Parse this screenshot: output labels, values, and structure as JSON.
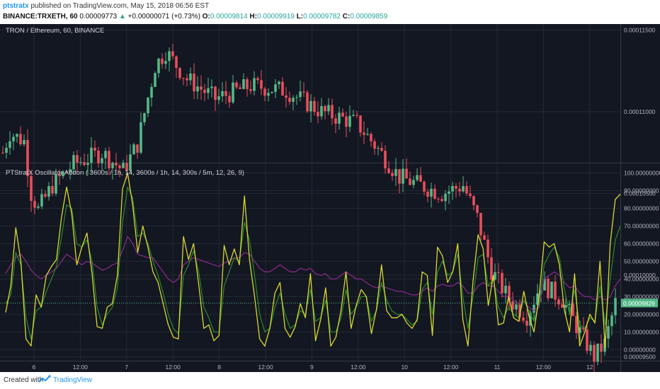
{
  "header": {
    "author": "ptstratx",
    "published_text": "published on TradingView.com, May 15, 2018 06:56 EST",
    "symbol": "BINANCE:TRXETH, 60",
    "last": "0.00009773",
    "change": "+0.00000071 (+0.73%)",
    "o_label": "O:",
    "o": "0.00009814",
    "h_label": "H:",
    "h": "0.00009919",
    "l_label": "L:",
    "l": "0.00009782",
    "c_label": "C:",
    "c": "0.00009859"
  },
  "price_pane": {
    "title": "TRON / Ethereum, 60, BINANCE",
    "axis_labels": [
      "0.00011500",
      "0.00011000",
      "0.00010500",
      "0.00010000",
      "0.00009500"
    ],
    "axis_values": [
      0.000115,
      0.00011,
      0.000105,
      0.0001,
      9.5e-05
    ],
    "last_price_label": "0.00009829",
    "last_price": 9.829e-05,
    "up_color": "#53b987",
    "down_color": "#eb4d5c",
    "close_path": [
      {
        "t": 0,
        "p": 0.0001075
      },
      {
        "t": 2,
        "p": 0.0001087
      },
      {
        "t": 6,
        "p": 0.0001082
      },
      {
        "t": 8,
        "p": 0.000105
      },
      {
        "t": 10,
        "p": 0.000104
      },
      {
        "t": 14,
        "p": 0.0001055
      },
      {
        "t": 20,
        "p": 0.0001068
      },
      {
        "t": 28,
        "p": 0.0001075
      },
      {
        "t": 34,
        "p": 0.0001064
      },
      {
        "t": 38,
        "p": 0.000108
      },
      {
        "t": 43,
        "p": 0.0001128
      },
      {
        "t": 46,
        "p": 0.0001137
      },
      {
        "t": 52,
        "p": 0.000112
      },
      {
        "t": 60,
        "p": 0.0001108
      },
      {
        "t": 70,
        "p": 0.0001116
      },
      {
        "t": 80,
        "p": 0.0001113
      },
      {
        "t": 90,
        "p": 0.00011
      },
      {
        "t": 100,
        "p": 0.0001093
      },
      {
        "t": 106,
        "p": 0.0001077
      },
      {
        "t": 112,
        "p": 0.000106
      },
      {
        "t": 118,
        "p": 0.0001055
      },
      {
        "t": 124,
        "p": 0.000105
      },
      {
        "t": 130,
        "p": 0.0001055
      },
      {
        "t": 134,
        "p": 0.0001035
      },
      {
        "t": 138,
        "p": 0.0001003
      },
      {
        "t": 143,
        "p": 9.85e-05
      },
      {
        "t": 148,
        "p": 9.75e-05
      },
      {
        "t": 152,
        "p": 9.95e-05
      },
      {
        "t": 158,
        "p": 9.85e-05
      },
      {
        "t": 163,
        "p": 9.65e-05
      },
      {
        "t": 167,
        "p": 9.5e-05
      },
      {
        "t": 170,
        "p": 9.58e-05
      },
      {
        "t": 173,
        "p": 9.83e-05
      }
    ]
  },
  "osc_pane": {
    "title": "PTStratX Oscillator Addon ( 3600s / 1h, 14,  3600s / 1h, 14,   300s / 5m, 12, 26, 9)",
    "axis_labels": [
      "100.00000000",
      "90.00000000",
      "80.00000000",
      "70.00000000",
      "60.00000000",
      "50.00000000",
      "40.00000000",
      "30.00000000",
      "20.00000000",
      "10.00000000",
      "0.00000000"
    ],
    "axis_values": [
      100,
      90,
      80,
      70,
      60,
      50,
      40,
      30,
      20,
      10,
      0
    ],
    "yellow_color": "#d8d830",
    "green_color": "#2c8a2c",
    "purple_color": "#8b2a8b",
    "yellow": [
      21,
      36,
      69,
      50,
      6,
      2,
      31,
      24,
      42,
      47,
      51,
      75,
      92,
      77,
      48,
      58,
      66,
      43,
      13,
      12,
      24,
      26,
      42,
      91,
      100,
      82,
      55,
      70,
      58,
      44,
      38,
      26,
      14,
      7,
      6,
      64,
      51,
      60,
      37,
      12,
      14,
      5,
      8,
      59,
      48,
      57,
      48,
      87,
      51,
      30,
      6,
      2,
      12,
      32,
      38,
      12,
      7,
      13,
      26,
      18,
      43,
      5,
      17,
      35,
      2,
      7,
      22,
      44,
      12,
      25,
      34,
      30,
      9,
      23,
      48,
      22,
      18,
      18,
      20,
      15,
      12,
      17,
      44,
      42,
      8,
      58,
      53,
      38,
      44,
      60,
      17,
      2,
      39,
      65,
      57,
      25,
      42,
      14,
      15,
      30,
      18,
      16,
      33,
      19,
      10,
      30,
      61,
      58,
      60,
      48,
      22,
      10,
      43,
      2,
      10,
      20,
      15,
      50,
      1,
      60,
      85,
      88
    ],
    "green": [
      26,
      31,
      55,
      48,
      18,
      6,
      22,
      24,
      33,
      40,
      47,
      64,
      82,
      80,
      60,
      58,
      62,
      50,
      24,
      14,
      20,
      24,
      35,
      72,
      92,
      86,
      64,
      66,
      60,
      50,
      42,
      32,
      20,
      12,
      9,
      42,
      48,
      56,
      44,
      24,
      18,
      10,
      10,
      36,
      44,
      52,
      50,
      72,
      62,
      42,
      20,
      10,
      12,
      24,
      32,
      20,
      12,
      14,
      22,
      20,
      34,
      16,
      18,
      28,
      10,
      10,
      18,
      34,
      20,
      24,
      30,
      30,
      16,
      22,
      38,
      28,
      22,
      20,
      20,
      17,
      14,
      16,
      34,
      38,
      20,
      44,
      50,
      42,
      44,
      54,
      30,
      12,
      30,
      52,
      54,
      36,
      40,
      24,
      18,
      24,
      20,
      18,
      28,
      22,
      16,
      26,
      48,
      54,
      58,
      52,
      34,
      20,
      34,
      14,
      12,
      18,
      16,
      36,
      14,
      40,
      62,
      70
    ],
    "purple": [
      43,
      48,
      52,
      54,
      50,
      45,
      42,
      40,
      42,
      44,
      46,
      50,
      54,
      52,
      50,
      48,
      50,
      49,
      47,
      45,
      46,
      48,
      49,
      56,
      64,
      60,
      54,
      53,
      52,
      52,
      48,
      44,
      40,
      38,
      40,
      48,
      50,
      52,
      51,
      50,
      49,
      48,
      47,
      49,
      50,
      52,
      52,
      55,
      54,
      50,
      46,
      44,
      44,
      46,
      48,
      46,
      44,
      44,
      46,
      45,
      46,
      43,
      42,
      43,
      40,
      40,
      42,
      44,
      42,
      40,
      40,
      38,
      36,
      35,
      36,
      35,
      34,
      33,
      33,
      32,
      31,
      31,
      33,
      35,
      33,
      36,
      37,
      36,
      36,
      38,
      36,
      32,
      32,
      36,
      38,
      36,
      36,
      33,
      30,
      30,
      28,
      26,
      27,
      24,
      22,
      24,
      40,
      42,
      44,
      42,
      38,
      35,
      36,
      32,
      30,
      30,
      28,
      30,
      28,
      30,
      36,
      40
    ]
  },
  "x_axis": {
    "labels": [
      "6",
      "12:00",
      "7",
      "12:00",
      "8",
      "12:00",
      "9",
      "12:00",
      "10",
      "12:00",
      "11",
      "12:00",
      "12"
    ],
    "hours": [
      9,
      21,
      33,
      45,
      57,
      69,
      81,
      93,
      105,
      117,
      129,
      141,
      153
    ]
  },
  "footer": {
    "created_with": "Created with",
    "brand": "TradingView"
  }
}
